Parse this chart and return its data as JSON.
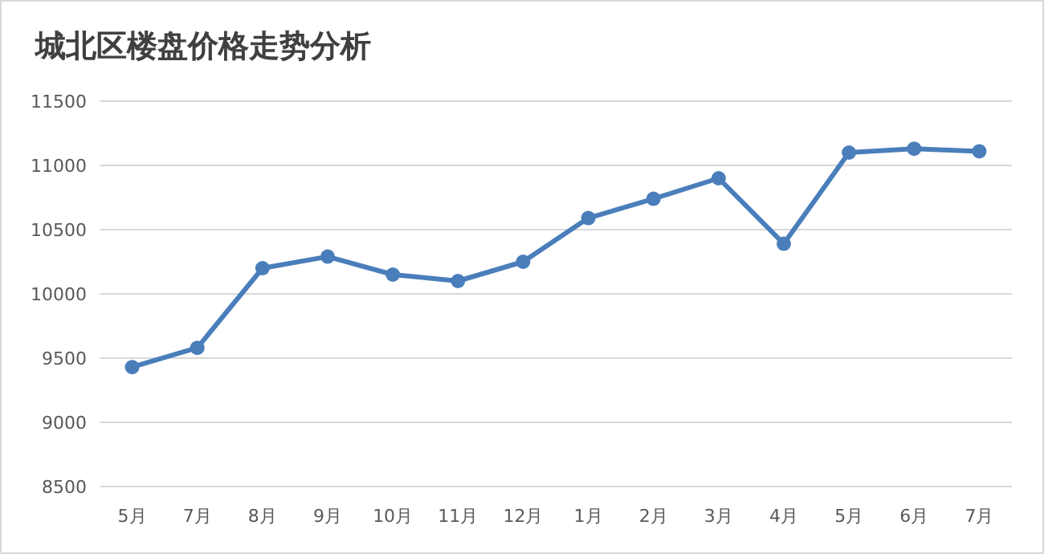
{
  "chart_data": {
    "type": "line",
    "title": "城北区楼盘价格走势分析",
    "categories": [
      "5月",
      "7月",
      "8月",
      "9月",
      "10月",
      "11月",
      "12月",
      "1月",
      "2月",
      "3月",
      "4月",
      "5月",
      "6月",
      "7月"
    ],
    "series": [
      {
        "color": "#4a7ebb",
        "values": [
          9430,
          9580,
          10200,
          10290,
          10150,
          10100,
          10250,
          10590,
          10740,
          10900,
          10390,
          11100,
          11130,
          11110
        ]
      }
    ],
    "ylim": [
      8500,
      11500
    ],
    "yticks": [
      8500,
      9000,
      9500,
      10000,
      10500,
      11000,
      11500
    ],
    "grid": "y",
    "marker": "circle",
    "line_style": "solid"
  }
}
